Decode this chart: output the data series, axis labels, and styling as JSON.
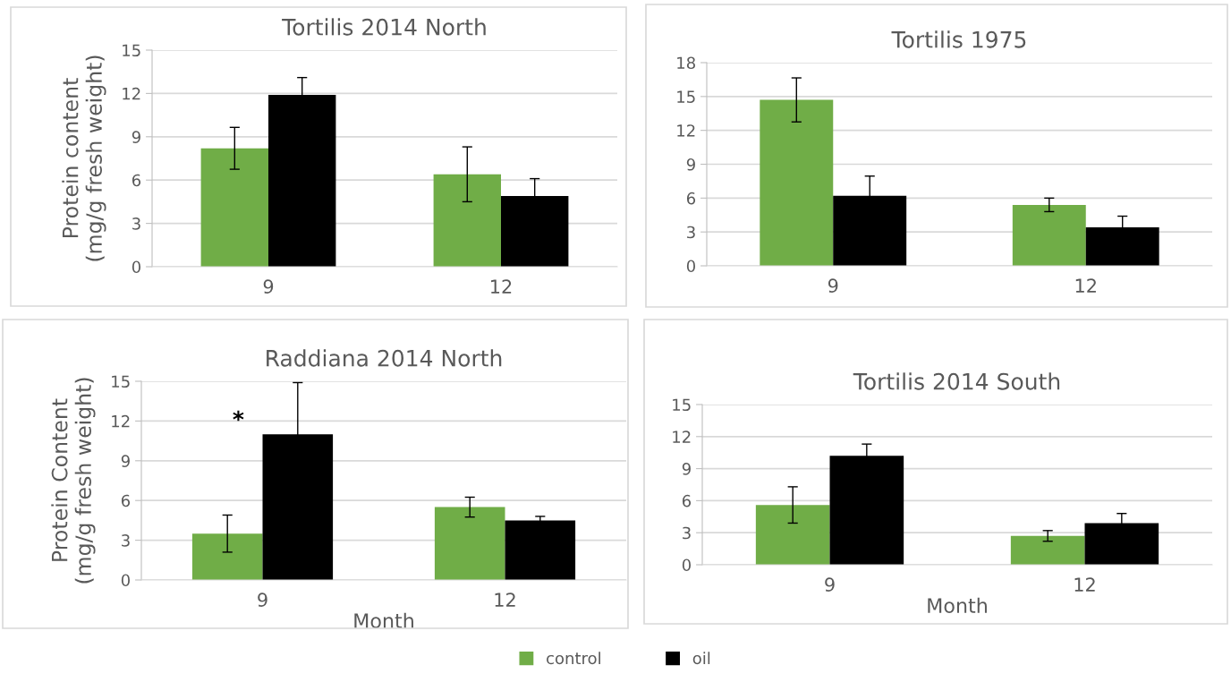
{
  "chart_data": [
    {
      "type": "bar",
      "title": "Tortilis 2014 North",
      "ylabel": "Protein content\n(mg/g fresh weight)",
      "categories": [
        "9",
        "12"
      ],
      "ylim": [
        0,
        15
      ],
      "yticks": [
        0,
        3,
        6,
        9,
        12,
        15
      ],
      "grid": "y",
      "legend": "bottom",
      "series": [
        {
          "name": "control",
          "color": "#70ad47",
          "values": [
            8.2,
            6.4
          ],
          "errors": [
            1.45,
            1.9
          ]
        },
        {
          "name": "oil",
          "color": "#000000",
          "values": [
            11.9,
            4.9
          ],
          "errors": [
            1.2,
            1.2
          ]
        }
      ]
    },
    {
      "type": "bar",
      "title": "Tortilis 1975",
      "categories": [
        "9",
        "12"
      ],
      "ylim": [
        0,
        18
      ],
      "yticks": [
        0,
        3,
        6,
        9,
        12,
        15,
        18
      ],
      "grid": "y",
      "series": [
        {
          "color": "#70ad47",
          "values": [
            14.7,
            5.4
          ],
          "errors": [
            1.95,
            0.6
          ]
        },
        {
          "color": "#000000",
          "values": [
            6.2,
            3.4
          ],
          "errors": [
            1.75,
            1.0
          ]
        }
      ]
    },
    {
      "type": "bar",
      "title": "Raddiana 2014 North",
      "ylabel": "Protein Content\n(mg/g fresh weight)",
      "xlabel": "Month",
      "categories": [
        "9",
        "12"
      ],
      "ylim": [
        0,
        15
      ],
      "yticks": [
        0,
        3,
        6,
        9,
        12,
        15
      ],
      "grid": "y",
      "annotations": [
        "*"
      ],
      "series": [
        {
          "color": "#70ad47",
          "values": [
            3.5,
            5.5
          ],
          "errors": [
            1.4,
            0.75
          ]
        },
        {
          "color": "#000000",
          "values": [
            11.0,
            4.5
          ],
          "errors": [
            3.9,
            0.3
          ]
        }
      ]
    },
    {
      "type": "bar",
      "title": "Tortilis 2014 South",
      "xlabel": "Month",
      "categories": [
        "9",
        "12"
      ],
      "ylim": [
        0,
        15
      ],
      "yticks": [
        0,
        3,
        6,
        9,
        12,
        15
      ],
      "grid": "y",
      "series": [
        {
          "color": "#70ad47",
          "values": [
            5.6,
            2.7
          ],
          "errors": [
            1.7,
            0.5
          ]
        },
        {
          "color": "#000000",
          "values": [
            10.2,
            3.9
          ],
          "errors": [
            1.1,
            0.9
          ]
        }
      ]
    }
  ]
}
